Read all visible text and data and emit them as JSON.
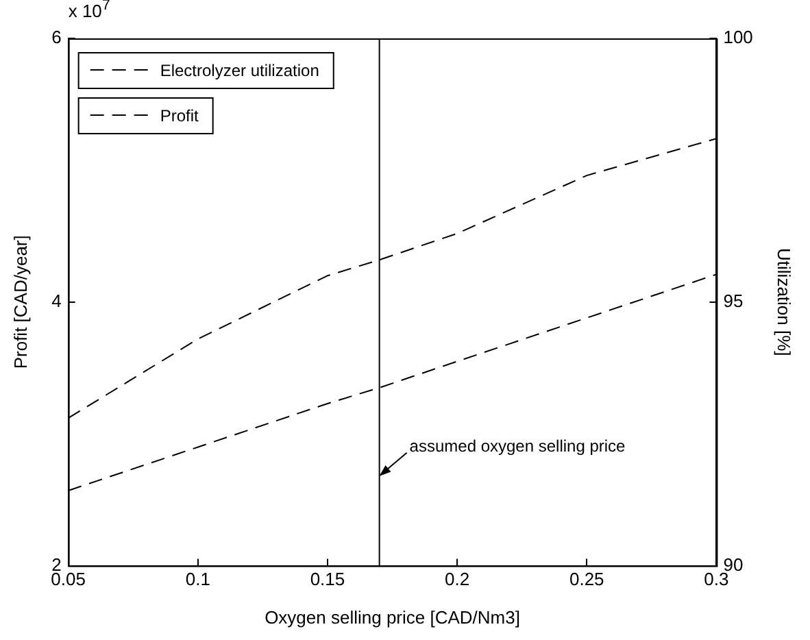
{
  "chart_data": {
    "type": "line",
    "xlabel": "Oxygen selling price [CAD/Nm3]",
    "ylabel": "Profit [CAD/year]",
    "y2label": "Utilization [%]",
    "xlim": [
      0.05,
      0.3
    ],
    "xticks": [
      0.05,
      0.1,
      0.15,
      0.2,
      0.25,
      0.3
    ],
    "ylim": [
      2,
      6
    ],
    "yticks": [
      2,
      4,
      6
    ],
    "y2lim": [
      90,
      100
    ],
    "y2ticks": [
      90,
      95,
      100
    ],
    "grid": false,
    "legend": "top left",
    "marker": "none",
    "line_style": "dashed",
    "x": [
      0.05,
      0.1,
      0.15,
      0.17,
      0.2,
      0.25,
      0.3
    ],
    "series": [
      {
        "name": "Electrolyzer utilization",
        "color": "#000000",
        "axis": "y2",
        "values": [
          92.8,
          94.3,
          95.5,
          95.8,
          96.3,
          97.4,
          98.1
        ]
      },
      {
        "name": "Profit",
        "color": "#000000",
        "values": [
          2.57,
          2.9,
          3.23,
          3.35,
          3.55,
          3.88,
          4.21
        ]
      }
    ],
    "ref_lines": [
      {
        "axis": "x",
        "value": 0.17,
        "color": "#000000",
        "line_style": "solid"
      }
    ],
    "annotations": [
      "x 10$^{7}$",
      {
        "text": "assumed oxygen selling price",
        "x": 0.17,
        "y": 2.68
      }
    ]
  }
}
